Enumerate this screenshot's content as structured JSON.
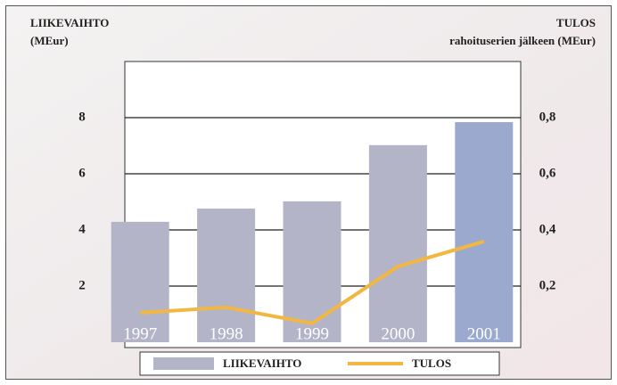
{
  "chart_data": {
    "type": "bar+line",
    "ylabel": [
      "LIIKEVAIHTO",
      "(MEur)"
    ],
    "y2label": [
      "TULOS",
      "rahoituserien jälkeen (MEur)"
    ],
    "categories": [
      "1997",
      "1998",
      "1999",
      "2000",
      "2001"
    ],
    "series": [
      {
        "name": "LIIKEVAIHTO",
        "type": "bar",
        "color": "#b4b4c9",
        "colors": [
          "#b4b4c9",
          "#b4b4c9",
          "#b4b4c9",
          "#b4b4c9",
          "#9ba9cf"
        ],
        "values": [
          4.29,
          4.76,
          5.02,
          7.02,
          7.84
        ]
      },
      {
        "name": "TULOS",
        "type": "line",
        "axis": "y2",
        "color": "#f2b740",
        "values": [
          0.105,
          0.124,
          0.067,
          0.27,
          0.359
        ]
      }
    ],
    "ylim": [
      0,
      10
    ],
    "yticks": [
      2,
      4,
      6,
      8
    ],
    "y2lim": [
      0,
      1.0
    ],
    "y2ticks": [
      {
        "value": 0.2,
        "label": "0,2"
      },
      {
        "value": 0.4,
        "label": "0,4"
      },
      {
        "value": 0.6,
        "label": "0,6"
      },
      {
        "value": 0.8,
        "label": "0,8"
      }
    ],
    "grid": true
  }
}
